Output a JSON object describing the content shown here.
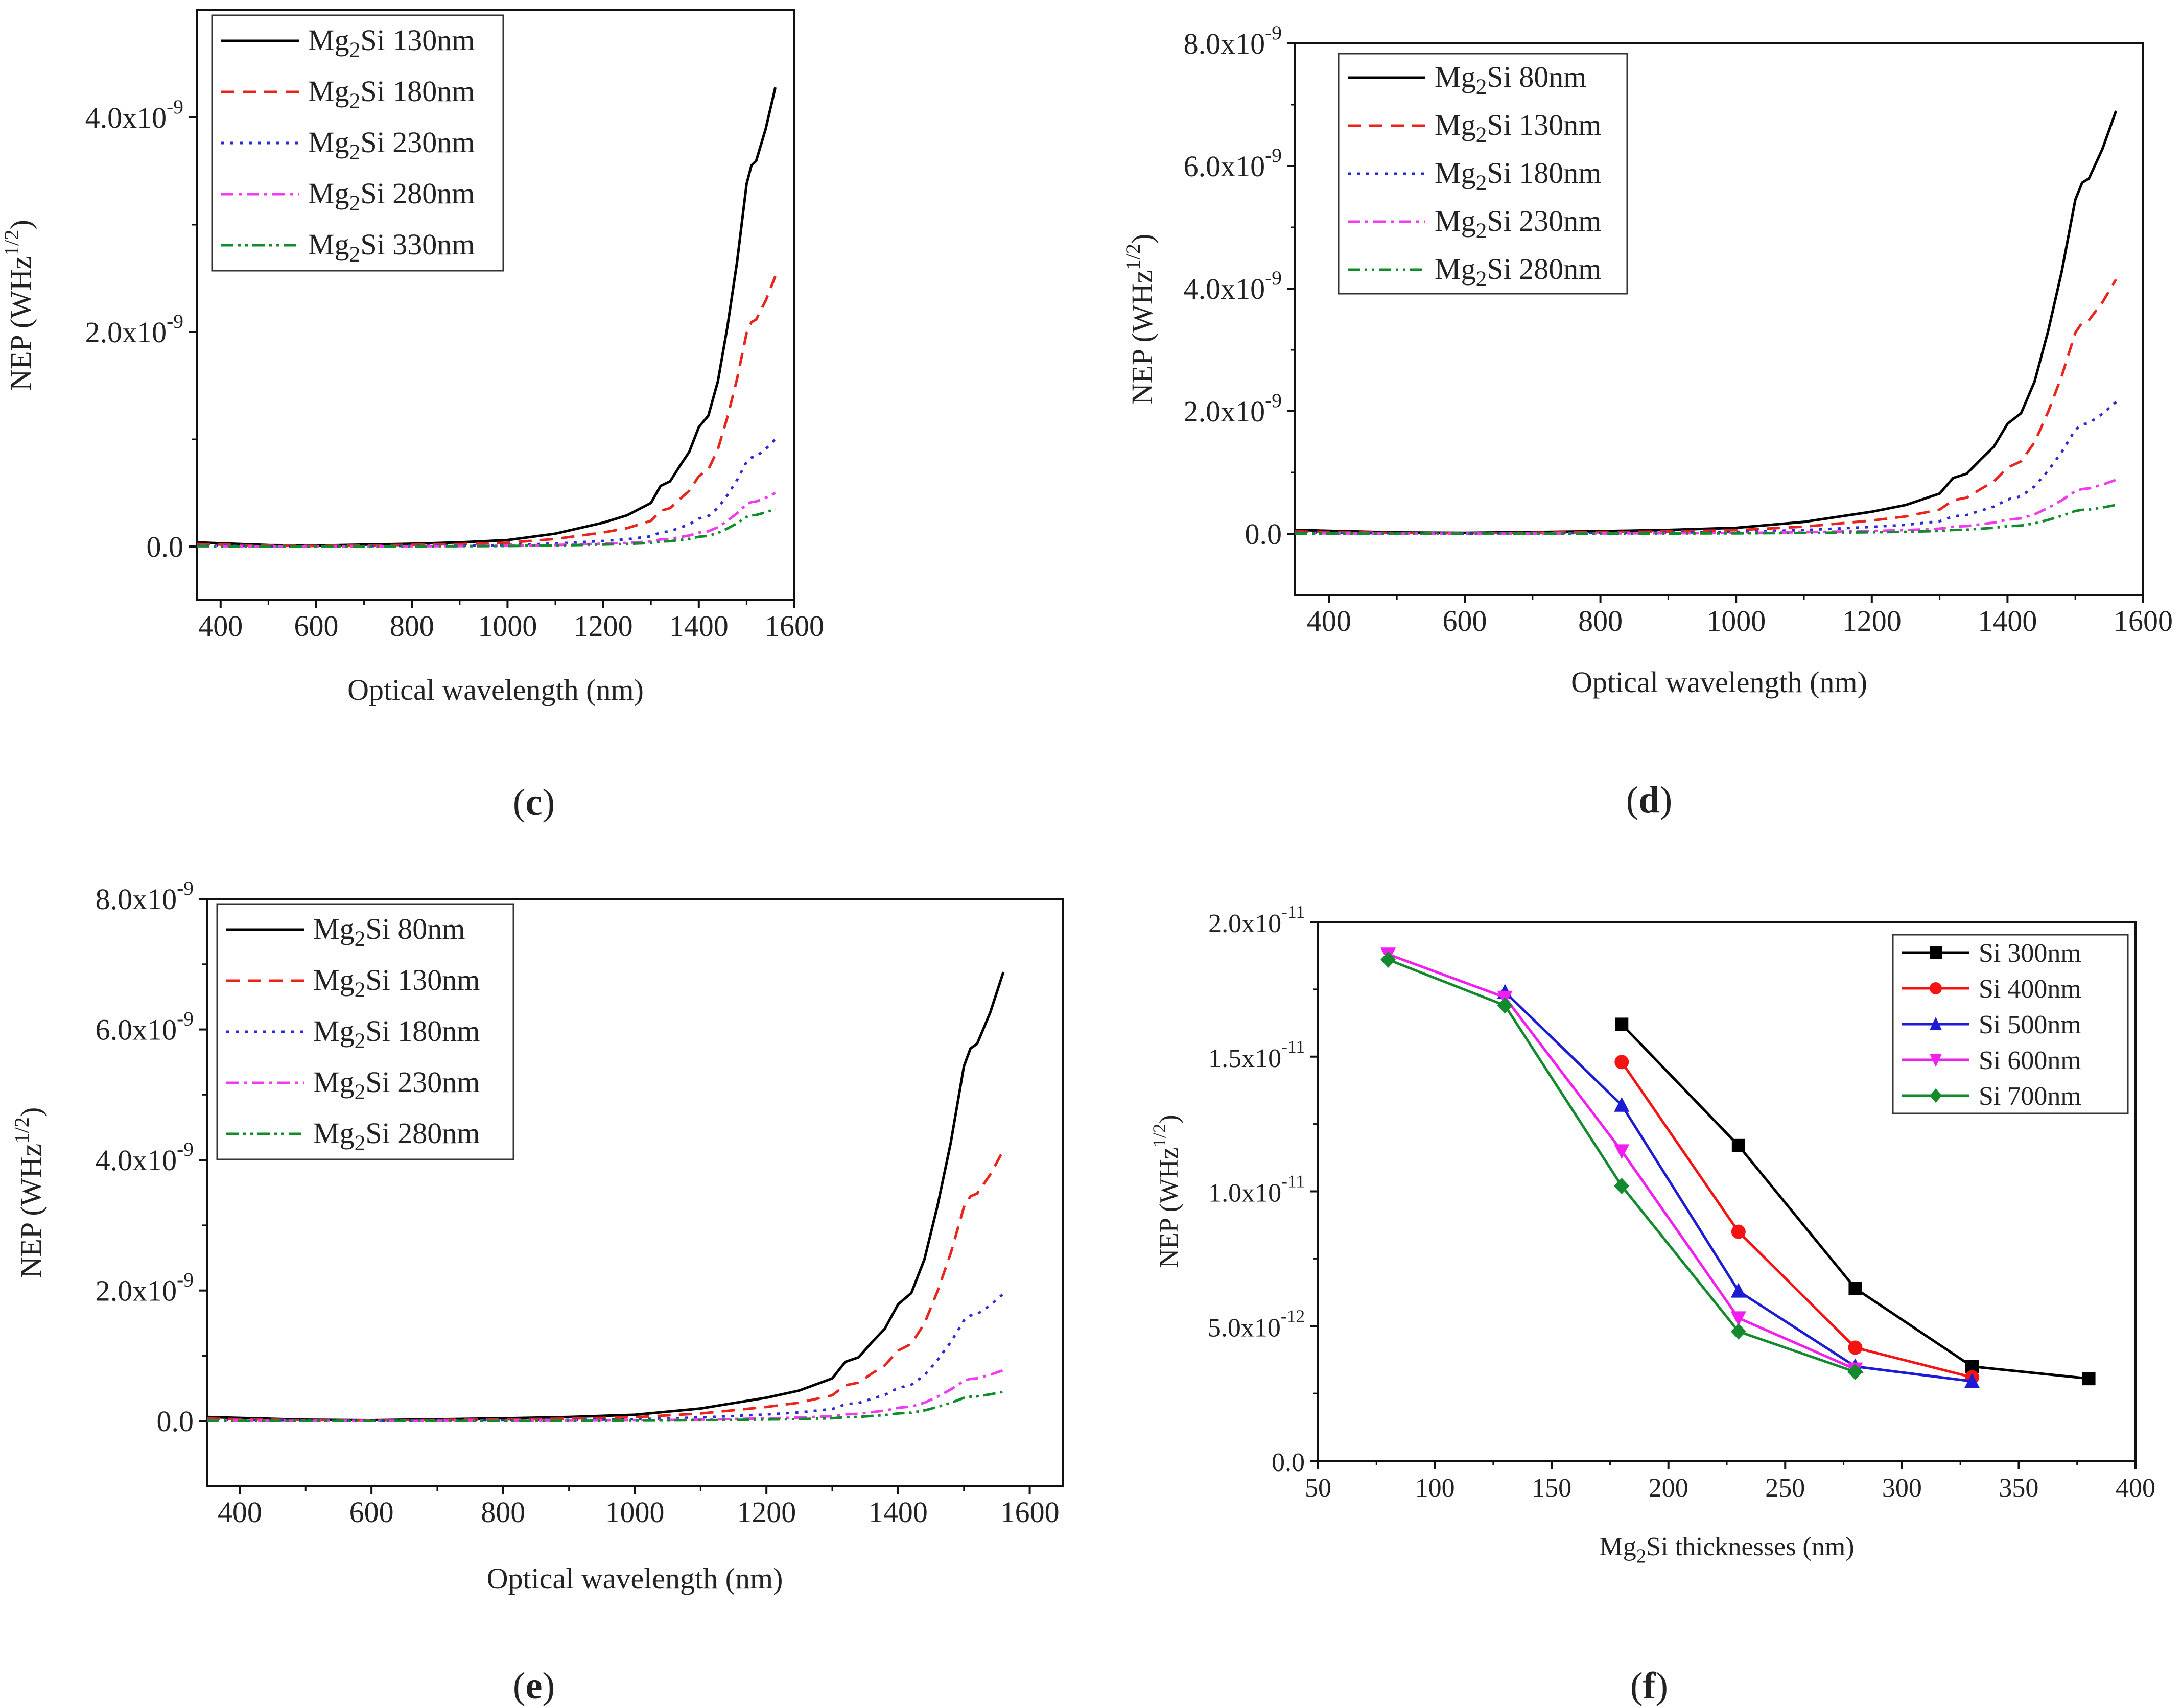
{
  "figure": {
    "panels": [
      "(c)",
      "(d)",
      "(e)",
      "(f)"
    ]
  },
  "chart_data": [
    {
      "panel": "c",
      "panel_label": "(c)",
      "type": "line",
      "xlabel": "Optical wavelength (nm)",
      "ylabel": "NEP (WHz1/2)",
      "ylabel_parts": {
        "base": "NEP (WHz",
        "sup": "1/2",
        "close": ")"
      },
      "xlim": [
        350,
        1600
      ],
      "ylim": [
        -0.5,
        5.0
      ],
      "y_exp_unit": -9,
      "xticks": [
        400,
        600,
        800,
        1000,
        1200,
        1400,
        1600
      ],
      "xtick_labels": [
        "400",
        "600",
        "800",
        "1000",
        "1200",
        "1400",
        "1600"
      ],
      "yticks": [
        0,
        2,
        4
      ],
      "ytick_labels": [
        {
          "mant": "0.0",
          "exp": ""
        },
        {
          "mant": "2.0x10",
          "exp": "-9"
        },
        {
          "mant": "4.0x10",
          "exp": "-9"
        }
      ],
      "legend_position": "top-left",
      "series": [
        {
          "name": "Mg2Si 130nm",
          "label": {
            "a": "Mg",
            "sub": "2",
            "b": "Si 130nm"
          },
          "color": "#000000",
          "dash": "solid",
          "peak": 4.28
        },
        {
          "name": "Mg2Si 180nm",
          "label": {
            "a": "Mg",
            "sub": "2",
            "b": "Si 180nm"
          },
          "color": "#e8251d",
          "dash": "dash",
          "peak": 2.52
        },
        {
          "name": "Mg2Si 230nm",
          "label": {
            "a": "Mg",
            "sub": "2",
            "b": "Si 230nm"
          },
          "color": "#2b2bd6",
          "dash": "dot",
          "peak": 1.0
        },
        {
          "name": "Mg2Si 280nm",
          "label": {
            "a": "Mg",
            "sub": "2",
            "b": "Si 280nm"
          },
          "color": "#f03cf0",
          "dash": "dashdot",
          "peak": 0.5
        },
        {
          "name": "Mg2Si 330nm",
          "label": {
            "a": "Mg",
            "sub": "2",
            "b": "Si 330nm"
          },
          "color": "#118c2c",
          "dash": "dashdotdot",
          "peak": 0.35
        }
      ]
    },
    {
      "panel": "d",
      "panel_label": "(d)",
      "type": "line",
      "xlabel": "Optical wavelength (nm)",
      "ylabel": "NEP (WHz1/2)",
      "ylabel_parts": {
        "base": "NEP (WHz",
        "sup": "1/2",
        "close": ")"
      },
      "xlim": [
        350,
        1600
      ],
      "ylim": [
        -1.0,
        8.0
      ],
      "y_exp_unit": -9,
      "xticks": [
        400,
        600,
        800,
        1000,
        1200,
        1400,
        1600
      ],
      "xtick_labels": [
        "400",
        "600",
        "800",
        "1000",
        "1200",
        "1400",
        "1600"
      ],
      "yticks": [
        0,
        2,
        4,
        6,
        8
      ],
      "ytick_labels": [
        {
          "mant": "0.0",
          "exp": ""
        },
        {
          "mant": "2.0x10",
          "exp": "-9"
        },
        {
          "mant": "4.0x10",
          "exp": "-9"
        },
        {
          "mant": "6.0x10",
          "exp": "-9"
        },
        {
          "mant": "8.0x10",
          "exp": "-9"
        }
      ],
      "legend_position": "top-left",
      "series": [
        {
          "name": "Mg2Si 80nm",
          "label": {
            "a": "Mg",
            "sub": "2",
            "b": "Si  80nm"
          },
          "color": "#000000",
          "dash": "solid",
          "peak": 6.9
        },
        {
          "name": "Mg2Si 130nm",
          "label": {
            "a": "Mg",
            "sub": "2",
            "b": "Si 130nm"
          },
          "color": "#e8251d",
          "dash": "dash",
          "peak": 4.15
        },
        {
          "name": "Mg2Si 180nm",
          "label": {
            "a": "Mg",
            "sub": "2",
            "b": "Si 180nm"
          },
          "color": "#2b2bd6",
          "dash": "dot",
          "peak": 2.15
        },
        {
          "name": "Mg2Si 230nm",
          "label": {
            "a": "Mg",
            "sub": "2",
            "b": "Si 230nm"
          },
          "color": "#f03cf0",
          "dash": "dashdot",
          "peak": 0.88
        },
        {
          "name": "Mg2Si 280nm",
          "label": {
            "a": "Mg",
            "sub": "2",
            "b": "Si 280nm"
          },
          "color": "#118c2c",
          "dash": "dashdotdot",
          "peak": 0.47
        }
      ]
    },
    {
      "panel": "e",
      "panel_label": "(e)",
      "type": "line",
      "xlabel": "Optical wavelength (nm)",
      "ylabel": "NEP (WHz1/2)",
      "ylabel_parts": {
        "base": "NEP (WHz",
        "sup": "1/2",
        "close": ")"
      },
      "xlim": [
        350,
        1650
      ],
      "ylim": [
        -1.0,
        8.0
      ],
      "y_exp_unit": -9,
      "xticks": [
        400,
        600,
        800,
        1000,
        1200,
        1400,
        1600
      ],
      "xtick_labels": [
        "400",
        "600",
        "800",
        "1000",
        "1200",
        "1400",
        "1600"
      ],
      "yticks": [
        0,
        2,
        4,
        6,
        8
      ],
      "ytick_labels": [
        {
          "mant": "0.0",
          "exp": ""
        },
        {
          "mant": "2.0x10",
          "exp": "-9"
        },
        {
          "mant": "4.0x10",
          "exp": "-9"
        },
        {
          "mant": "6.0x10",
          "exp": "-9"
        },
        {
          "mant": "8.0x10",
          "exp": "-9"
        }
      ],
      "legend_position": "top-left",
      "series": [
        {
          "name": "Mg2Si 80nm",
          "label": {
            "a": "Mg",
            "sub": "2",
            "b": "Si 80nm"
          },
          "color": "#000000",
          "dash": "solid",
          "peak": 6.88
        },
        {
          "name": "Mg2Si 130nm",
          "label": {
            "a": "Mg",
            "sub": "2",
            "b": "Si 130nm"
          },
          "color": "#e8251d",
          "dash": "dash",
          "peak": 4.15
        },
        {
          "name": "Mg2Si 180nm",
          "label": {
            "a": "Mg",
            "sub": "2",
            "b": "Si 180nm"
          },
          "color": "#2b2bd6",
          "dash": "dot",
          "peak": 1.95
        },
        {
          "name": "Mg2Si 230nm",
          "label": {
            "a": "Mg",
            "sub": "2",
            "b": "Si 230nm"
          },
          "color": "#f03cf0",
          "dash": "dashdot",
          "peak": 0.78
        },
        {
          "name": "Mg2Si 280nm",
          "label": {
            "a": "Mg",
            "sub": "2",
            "b": "Si 280nm"
          },
          "color": "#118c2c",
          "dash": "dashdotdot",
          "peak": 0.45
        }
      ]
    },
    {
      "panel": "f",
      "panel_label": "(f)",
      "type": "line",
      "xlabel": "Mg2Si thicknesses (nm)",
      "xlabel_parts": {
        "a": "Mg",
        "sub": "2",
        "b": "Si thicknesses (nm)"
      },
      "ylabel": "NEP (WHz1/2)",
      "ylabel_parts": {
        "base": "NEP (WHz",
        "sup": "1/2",
        "close": ")"
      },
      "xlim": [
        50,
        400
      ],
      "ylim": [
        0,
        20
      ],
      "y_exp_unit": -12,
      "xticks": [
        50,
        100,
        150,
        200,
        250,
        300,
        350,
        400
      ],
      "xtick_labels": [
        "50",
        "100",
        "150",
        "200",
        "250",
        "300",
        "350",
        "400"
      ],
      "yticks": [
        0,
        5,
        10,
        15,
        20
      ],
      "ytick_labels": [
        {
          "mant": "0.0",
          "exp": ""
        },
        {
          "mant": "5.0x10",
          "exp": "-12"
        },
        {
          "mant": "1.0x10",
          "exp": "-11"
        },
        {
          "mant": "1.5x10",
          "exp": "-11"
        },
        {
          "mant": "2.0x10",
          "exp": "-11"
        }
      ],
      "legend_position": "top-right",
      "series": [
        {
          "name": "Si 300nm",
          "color": "#000000",
          "marker": "square",
          "x": [
            180,
            230,
            280,
            330,
            380
          ],
          "y": [
            16.2,
            11.7,
            6.4,
            3.5,
            3.05
          ]
        },
        {
          "name": "Si 400nm",
          "color": "#f51414",
          "marker": "circle",
          "x": [
            180,
            230,
            280,
            330
          ],
          "y": [
            14.8,
            8.5,
            4.2,
            3.1
          ]
        },
        {
          "name": "Si 500nm",
          "color": "#1c1cd4",
          "marker": "triangle-up",
          "x": [
            130,
            180,
            230,
            280,
            330
          ],
          "y": [
            17.4,
            13.2,
            6.3,
            3.5,
            2.95
          ]
        },
        {
          "name": "Si 600nm",
          "color": "#f21ef0",
          "marker": "triangle-down",
          "x": [
            80,
            130,
            180,
            230,
            280
          ],
          "y": [
            18.8,
            17.2,
            11.5,
            5.3,
            3.4
          ]
        },
        {
          "name": "Si 700nm",
          "color": "#148a2e",
          "marker": "diamond",
          "x": [
            80,
            130,
            180,
            230,
            280
          ],
          "y": [
            18.6,
            16.9,
            10.2,
            4.8,
            3.3
          ]
        }
      ]
    }
  ]
}
